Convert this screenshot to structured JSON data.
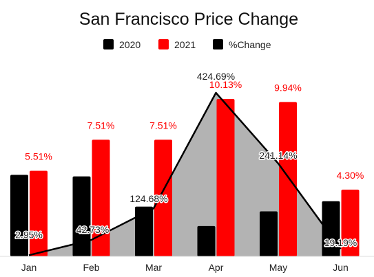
{
  "chart_data": {
    "type": "bar",
    "title": "San Francisco Price Change",
    "categories": [
      "Jan",
      "Feb",
      "Mar",
      "Apr",
      "May",
      "Jun"
    ],
    "series": [
      {
        "name": "2020",
        "color": "#000000",
        "values": [
          5.25,
          5.15,
          3.2,
          1.95,
          2.9,
          3.55
        ]
      },
      {
        "name": "2021",
        "color": "#ff0000",
        "values": [
          5.51,
          7.51,
          7.51,
          10.13,
          9.94,
          4.3
        ],
        "labels": [
          "5.51%",
          "7.51%",
          "7.51%",
          "10.13%",
          "9.94%",
          "4.30%"
        ]
      },
      {
        "name": "%Change",
        "type": "area",
        "color": "#000000",
        "fill": "#b3b3b3",
        "values": [
          2.95,
          42.73,
          124.68,
          424.69,
          241.14,
          19.19
        ],
        "labels": [
          "2.95%",
          "42.73%",
          "124.68%",
          "424.69%",
          "241.14%",
          "19.19%"
        ]
      }
    ],
    "legend": "top",
    "grid": false,
    "legend_entries": [
      "2020",
      "2021",
      "%Change"
    ]
  }
}
